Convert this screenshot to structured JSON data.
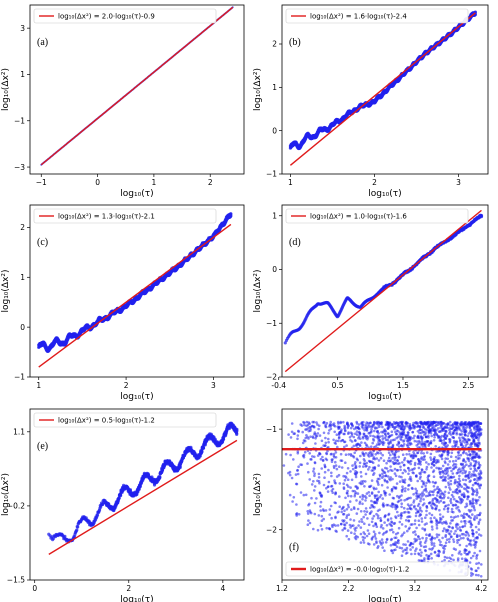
{
  "colors": {
    "scatter": "#2222ee",
    "fit": "#e01b1b",
    "frame": "#000000"
  },
  "chart_data": [
    {
      "type": "scatter",
      "panel_label": "(a)",
      "xlabel": "log₁₀(τ)",
      "ylabel": "log₁₀(Δx²)",
      "xlim": [
        -1.2,
        2.6
      ],
      "ylim": [
        -3.3,
        4.0
      ],
      "xticks": [
        -1,
        0,
        1,
        2
      ],
      "xtick_labels": [
        "−1",
        "0",
        "1",
        "2"
      ],
      "yticks": [
        -3,
        -1,
        1,
        3
      ],
      "ytick_labels": [
        "−3",
        "−1",
        "1",
        "3"
      ],
      "legend": {
        "placement": "top-left",
        "label": "log₁₀(Δx²) = 2.0·log₁₀(τ)-0.9"
      },
      "fit": {
        "slope": 2.0,
        "intercept": -0.9,
        "x_range": [
          -1.0,
          2.4
        ]
      },
      "series": {
        "shape": "line-dense",
        "x_range": [
          -1.0,
          2.4
        ],
        "anchors": [
          [
            -1.0,
            -2.9
          ],
          [
            2.4,
            3.9
          ]
        ]
      }
    },
    {
      "type": "scatter",
      "panel_label": "(b)",
      "xlabel": "log₁₀(τ)",
      "ylabel": "log₁₀(Δx²)",
      "xlim": [
        0.9,
        3.35
      ],
      "ylim": [
        -1.0,
        2.9
      ],
      "xticks": [
        1,
        2,
        3
      ],
      "xtick_labels": [
        "1",
        "2",
        "3"
      ],
      "yticks": [
        -1,
        0,
        1,
        2
      ],
      "ytick_labels": [
        "−1",
        "0",
        "1",
        "2"
      ],
      "legend": {
        "placement": "top-left",
        "label": "log₁₀(Δx²) = 1.6·log₁₀(τ)-2.4"
      },
      "fit": {
        "slope": 1.6,
        "intercept": -2.4,
        "x_range": [
          1.0,
          3.2
        ]
      },
      "series": {
        "shape": "wavy",
        "anchors": [
          [
            1.0,
            -0.45
          ],
          [
            1.2,
            -0.2
          ],
          [
            1.5,
            0.1
          ],
          [
            1.8,
            0.5
          ],
          [
            2.0,
            0.65
          ],
          [
            2.3,
            1.2
          ],
          [
            2.6,
            1.75
          ],
          [
            2.9,
            2.2
          ],
          [
            3.2,
            2.7
          ]
        ],
        "wiggle": 0.1,
        "wiggle_decay": 2.0
      }
    },
    {
      "type": "scatter",
      "panel_label": "(c)",
      "xlabel": "log₁₀(τ)",
      "ylabel": "log₁₀(Δx²)",
      "xlim": [
        0.9,
        3.35
      ],
      "ylim": [
        -1.0,
        2.45
      ],
      "xticks": [
        1,
        2,
        3
      ],
      "xtick_labels": [
        "1",
        "2",
        "3"
      ],
      "yticks": [
        -1,
        0,
        1,
        2
      ],
      "ytick_labels": [
        "−1",
        "0",
        "1",
        "2"
      ],
      "legend": {
        "placement": "top-left",
        "label": "log₁₀(Δx²) = 1.3·log₁₀(τ)-2.1"
      },
      "fit": {
        "slope": 1.3,
        "intercept": -2.1,
        "x_range": [
          1.0,
          3.2
        ]
      },
      "series": {
        "shape": "wavy",
        "anchors": [
          [
            1.0,
            -0.45
          ],
          [
            1.3,
            -0.3
          ],
          [
            1.6,
            0.0
          ],
          [
            2.0,
            0.4
          ],
          [
            2.3,
            0.8
          ],
          [
            2.6,
            1.2
          ],
          [
            3.0,
            1.8
          ],
          [
            3.2,
            2.25
          ]
        ],
        "wiggle": 0.09,
        "wiggle_decay": 1.6
      }
    },
    {
      "type": "scatter",
      "panel_label": "(d)",
      "xlabel": "log₁₀(τ)",
      "ylabel": "log₁₀(Δx²)",
      "xlim": [
        -0.35,
        2.8
      ],
      "ylim": [
        -2.0,
        1.2
      ],
      "xticks": [
        -0.4,
        0.5,
        1.5,
        2.5
      ],
      "xtick_labels": [
        "-0.4",
        "0.5",
        "1.5",
        "2.5"
      ],
      "yticks": [
        -2,
        -1,
        0,
        1
      ],
      "ytick_labels": [
        "−2",
        "−1",
        "0",
        "1"
      ],
      "legend": {
        "placement": "top-left",
        "label": "log₁₀(Δx²) = 1.0·log₁₀(τ)-1.6"
      },
      "fit": {
        "slope": 1.0,
        "intercept": -1.6,
        "x_range": [
          -0.3,
          2.7
        ]
      },
      "series": {
        "shape": "oscillating",
        "anchors": [
          [
            -0.3,
            -1.35
          ],
          [
            0.0,
            -0.95
          ],
          [
            0.2,
            -0.6
          ],
          [
            0.35,
            -0.65
          ],
          [
            0.5,
            -0.85
          ],
          [
            0.65,
            -0.55
          ],
          [
            0.85,
            -0.7
          ],
          [
            1.1,
            -0.45
          ],
          [
            1.4,
            -0.2
          ],
          [
            1.7,
            0.1
          ],
          [
            2.0,
            0.4
          ],
          [
            2.3,
            0.65
          ],
          [
            2.7,
            1.0
          ]
        ]
      }
    },
    {
      "type": "scatter",
      "panel_label": "(e)",
      "xlabel": "log₁₀(τ)",
      "ylabel": "log₁₀(Δx²)",
      "xlim": [
        -0.1,
        4.45
      ],
      "ylim": [
        -1.5,
        1.5
      ],
      "xticks": [
        0,
        2,
        4
      ],
      "xtick_labels": [
        "0",
        "2",
        "4"
      ],
      "yticks": [
        -1.5,
        -0.2,
        1.1
      ],
      "ytick_labels": [
        "−1.5",
        "−0.2",
        "1.1"
      ],
      "legend": {
        "placement": "top-left",
        "label": "log₁₀(Δx²) = 0.5·log₁₀(τ)-1.2"
      },
      "fit": {
        "slope": 0.5,
        "intercept": -1.2,
        "x_range": [
          0.3,
          4.3
        ]
      },
      "series": {
        "shape": "noisy-rise",
        "anchors": [
          [
            0.3,
            -0.6
          ],
          [
            0.6,
            -0.85
          ],
          [
            0.9,
            -0.6
          ],
          [
            1.3,
            -0.35
          ],
          [
            1.8,
            -0.05
          ],
          [
            2.3,
            0.2
          ],
          [
            2.8,
            0.45
          ],
          [
            3.3,
            0.7
          ],
          [
            3.8,
            0.95
          ],
          [
            4.3,
            1.15
          ]
        ]
      }
    },
    {
      "type": "scatter",
      "panel_label": "(f)",
      "xlabel": "log₁₀(τ)",
      "ylabel": "log₁₀(Δx²)",
      "xlim": [
        1.2,
        4.3
      ],
      "ylim": [
        -2.5,
        -0.8
      ],
      "xticks": [
        1.2,
        2.2,
        3.2,
        4.2
      ],
      "xtick_labels": [
        "1.2",
        "2.2",
        "3.2",
        "4.2"
      ],
      "yticks": [
        -2,
        -1
      ],
      "ytick_labels": [
        "−2",
        "−1"
      ],
      "legend": {
        "placement": "bottom-left",
        "label": "log₁₀(Δx²) = -0.0·log₁₀(τ)-1.2"
      },
      "fit": {
        "slope": 0.0,
        "intercept": -1.2,
        "x_range": [
          1.2,
          4.2
        ]
      },
      "series": {
        "shape": "fan",
        "x_range": [
          1.2,
          4.2
        ],
        "top": -0.93,
        "bottom_start": -1.9,
        "bottom_end": -2.5
      }
    }
  ]
}
